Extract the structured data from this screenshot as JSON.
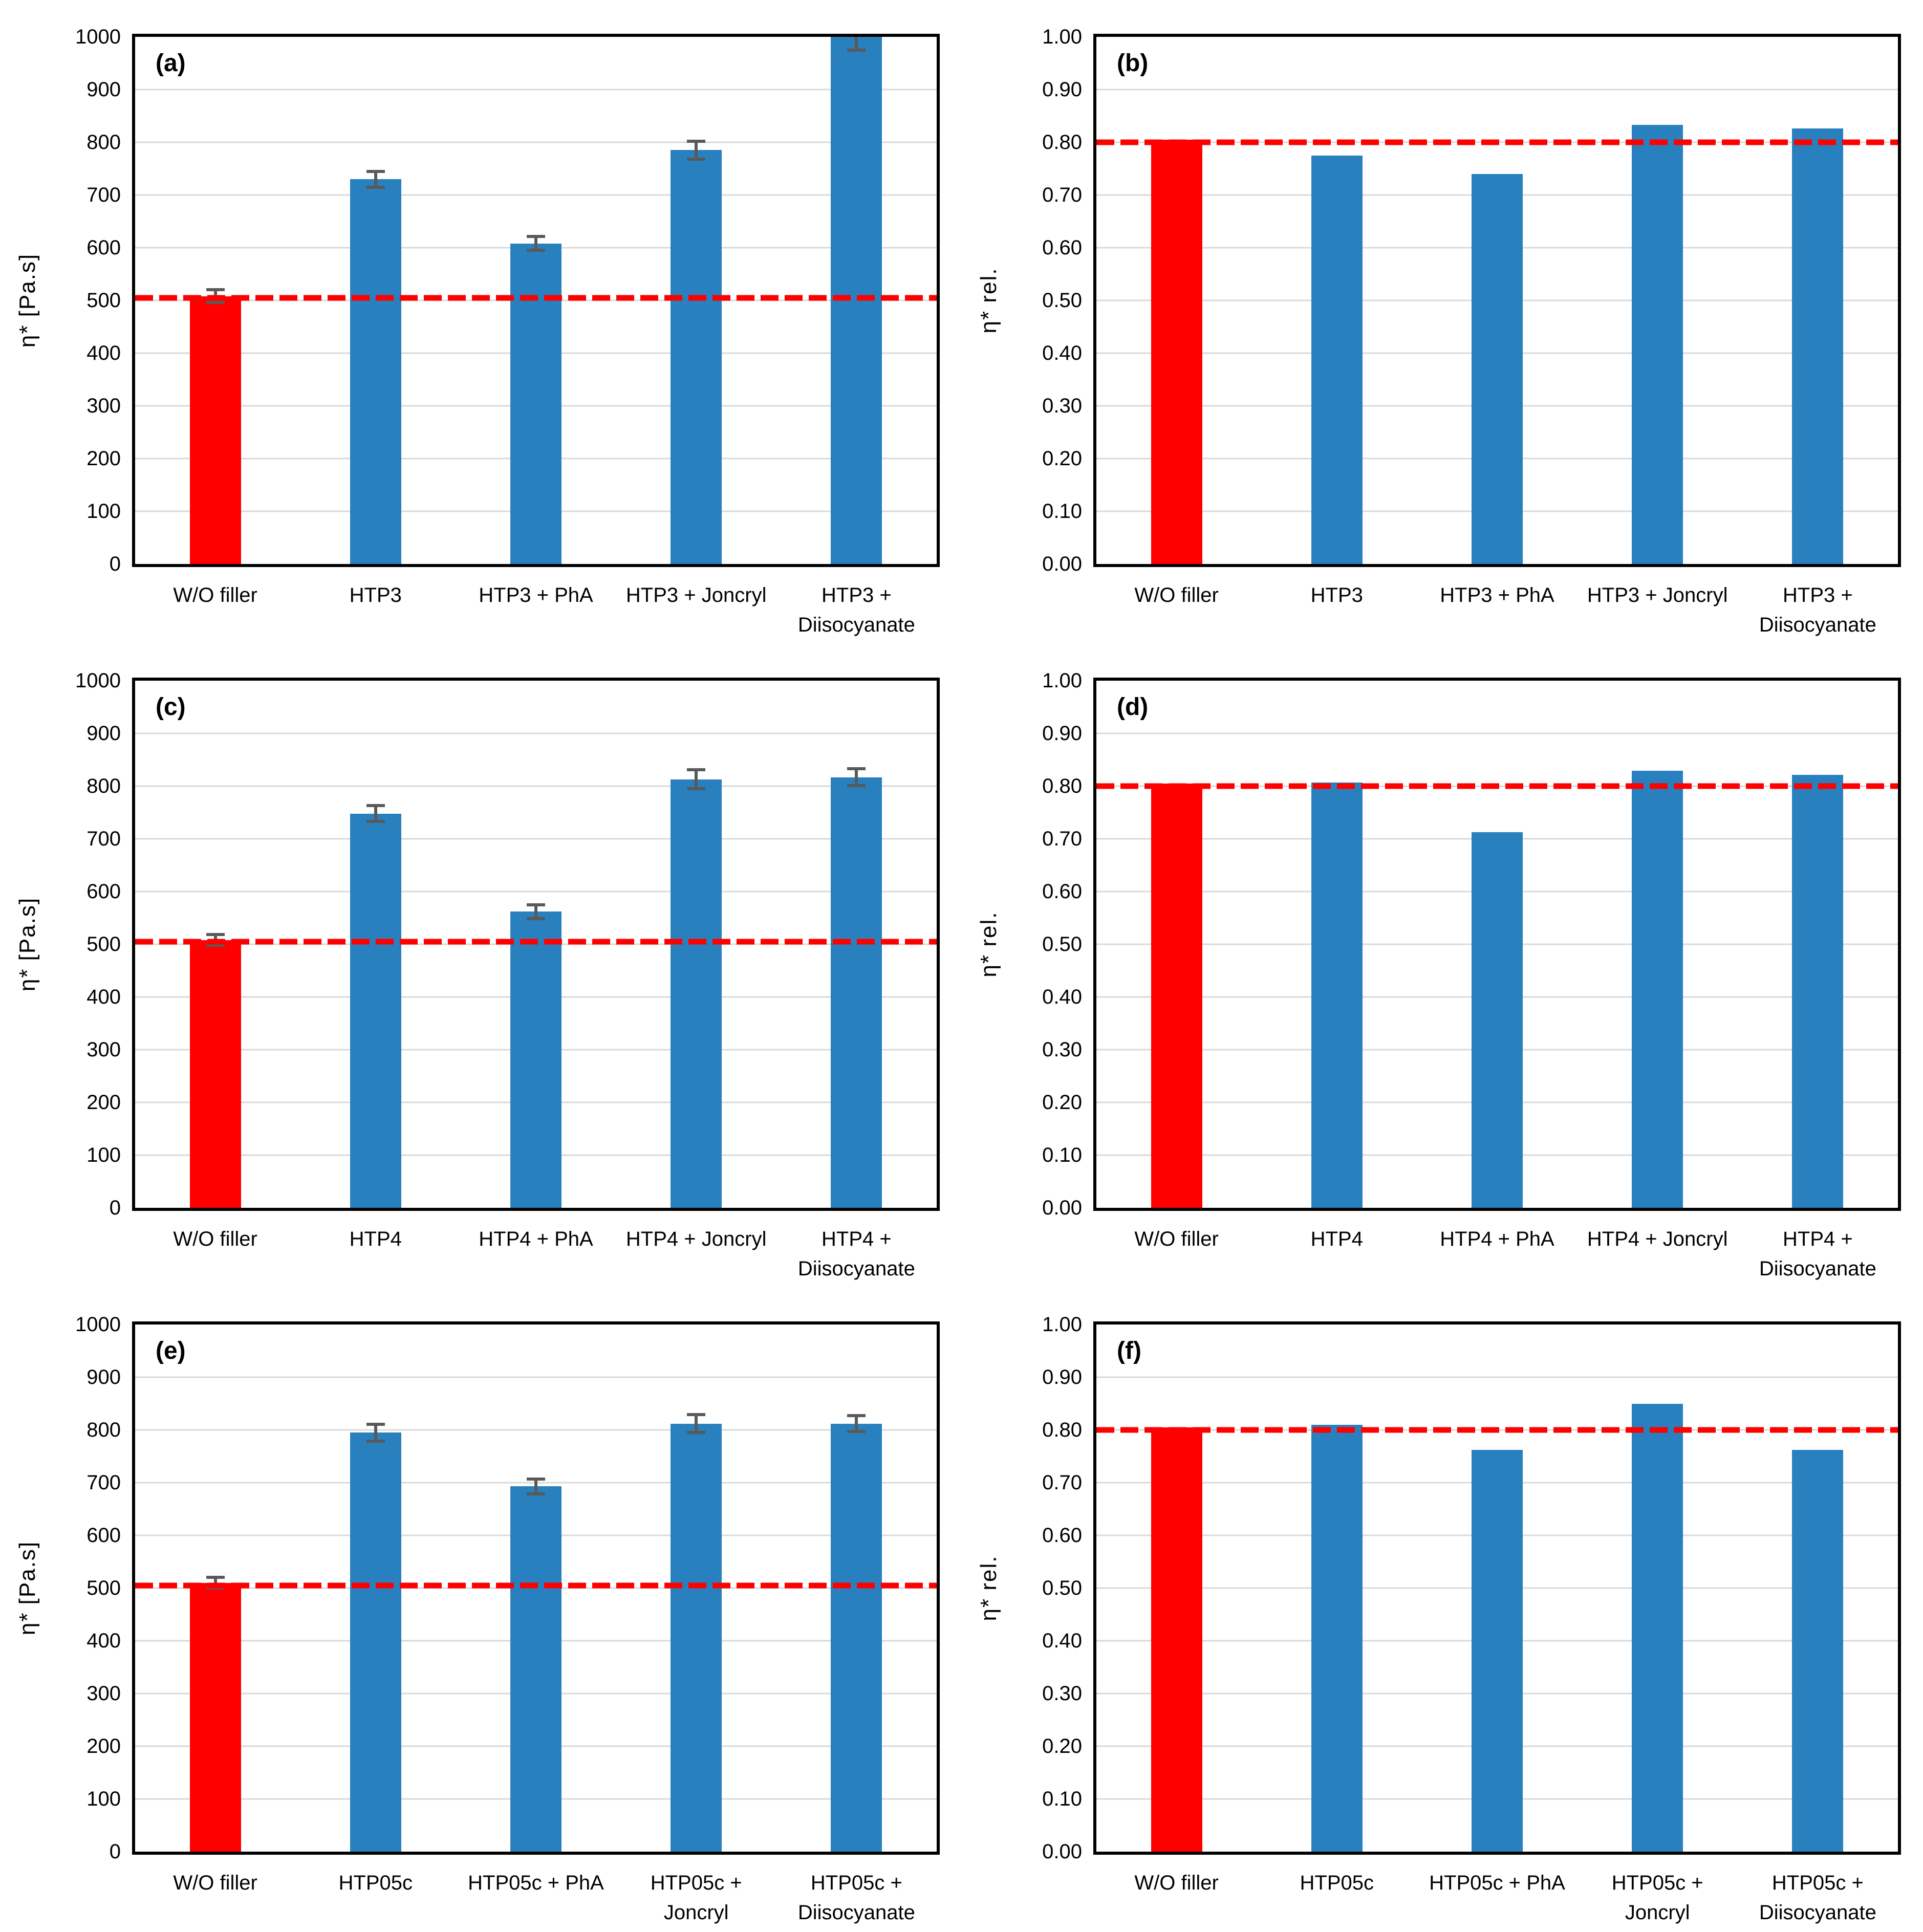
{
  "figure": {
    "background": "#FFFFFF",
    "panels_per_row": 2,
    "num_panels": 6
  },
  "colors": {
    "bar_blue": "#2880BE",
    "bar_red": "#FF0000",
    "reference_line_red": "#FF0000",
    "error_bar_gray": "#595959",
    "gridline_gray": "#D9D9D9",
    "axis_black": "#000000"
  },
  "chart_data": [
    {
      "panel_label": "(a)",
      "type": "bar",
      "ylabel": "η* [Pa.s]",
      "ylim": [
        0,
        1000
      ],
      "ytick_step": 100,
      "ytick_decimals": 0,
      "grid": true,
      "legend_position": "none",
      "reference_line": 505,
      "categories": [
        [
          "W/O filler"
        ],
        [
          "HTP3"
        ],
        [
          "HTP3 + PhA"
        ],
        [
          "HTP3 + Joncryl"
        ],
        [
          "HTP3 +",
          "Diisocyanate"
        ]
      ],
      "values": [
        508,
        730,
        608,
        785,
        1000
      ],
      "errors": [
        12,
        15,
        13,
        17,
        25
      ],
      "bar_roles": [
        "reference",
        "sample",
        "sample",
        "sample",
        "sample"
      ]
    },
    {
      "panel_label": "(b)",
      "type": "bar",
      "ylabel": "η* rel.",
      "ylim": [
        0,
        1
      ],
      "ytick_step": 0.1,
      "ytick_decimals": 2,
      "grid": true,
      "legend_position": "none",
      "reference_line": 0.8,
      "categories": [
        [
          "W/O filler"
        ],
        [
          "HTP3"
        ],
        [
          "HTP3 + PhA"
        ],
        [
          "HTP3 + Joncryl"
        ],
        [
          "HTP3 +",
          "Diisocyanate"
        ]
      ],
      "values": [
        0.805,
        0.775,
        0.74,
        0.833,
        0.826
      ],
      "errors": null,
      "bar_roles": [
        "reference",
        "sample",
        "sample",
        "sample",
        "sample"
      ]
    },
    {
      "panel_label": "(c)",
      "type": "bar",
      "ylabel": "η* [Pa.s]",
      "ylim": [
        0,
        1000
      ],
      "ytick_step": 100,
      "ytick_decimals": 0,
      "grid": true,
      "legend_position": "none",
      "reference_line": 505,
      "categories": [
        [
          "W/O filler"
        ],
        [
          "HTP4"
        ],
        [
          "HTP4 + PhA"
        ],
        [
          "HTP4 + Joncryl"
        ],
        [
          "HTP4 +",
          "Diisocyanate"
        ]
      ],
      "values": [
        508,
        748,
        562,
        813,
        817
      ],
      "errors": [
        10,
        15,
        13,
        18,
        16
      ],
      "bar_roles": [
        "reference",
        "sample",
        "sample",
        "sample",
        "sample"
      ]
    },
    {
      "panel_label": "(d)",
      "type": "bar",
      "ylabel": "η* rel.",
      "ylim": [
        0,
        1
      ],
      "ytick_step": 0.1,
      "ytick_decimals": 2,
      "grid": true,
      "legend_position": "none",
      "reference_line": 0.8,
      "categories": [
        [
          "W/O filler"
        ],
        [
          "HTP4"
        ],
        [
          "HTP4 + PhA"
        ],
        [
          "HTP4 + Joncryl"
        ],
        [
          "HTP4 +",
          "Diisocyanate"
        ]
      ],
      "values": [
        0.805,
        0.807,
        0.713,
        0.829,
        0.821
      ],
      "errors": null,
      "bar_roles": [
        "reference",
        "sample",
        "sample",
        "sample",
        "sample"
      ]
    },
    {
      "panel_label": "(e)",
      "type": "bar",
      "ylabel": "η* [Pa.s]",
      "ylim": [
        0,
        1000
      ],
      "ytick_step": 100,
      "ytick_decimals": 0,
      "grid": true,
      "legend_position": "none",
      "reference_line": 505,
      "categories": [
        [
          "W/O filler"
        ],
        [
          "HTP05c"
        ],
        [
          "HTP05c + PhA"
        ],
        [
          "HTP05c +",
          "Joncryl"
        ],
        [
          "HTP05c +",
          "Diisocyanate"
        ]
      ],
      "values": [
        510,
        795,
        693,
        812,
        812
      ],
      "errors": [
        10,
        16,
        14,
        17,
        15
      ],
      "bar_roles": [
        "reference",
        "sample",
        "sample",
        "sample",
        "sample"
      ]
    },
    {
      "panel_label": "(f)",
      "type": "bar",
      "ylabel": "η* rel.",
      "ylim": [
        0,
        1
      ],
      "ytick_step": 0.1,
      "ytick_decimals": 2,
      "grid": true,
      "legend_position": "none",
      "reference_line": 0.8,
      "categories": [
        [
          "W/O filler"
        ],
        [
          "HTP05c"
        ],
        [
          "HTP05c + PhA"
        ],
        [
          "HTP05c +",
          "Joncryl"
        ],
        [
          "HTP05c +",
          "Diisocyanate"
        ]
      ],
      "values": [
        0.805,
        0.81,
        0.762,
        0.85,
        0.762
      ],
      "errors": null,
      "bar_roles": [
        "reference",
        "sample",
        "sample",
        "sample",
        "sample"
      ]
    }
  ]
}
